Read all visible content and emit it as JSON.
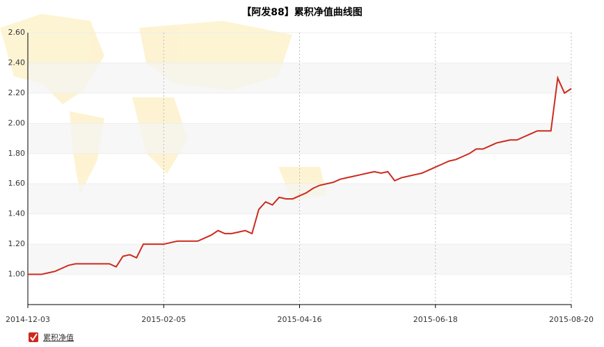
{
  "chart_data": {
    "type": "line",
    "title": "【阿发88】累积净值曲线图",
    "categories": [
      "2014-12-03",
      null,
      null,
      null,
      null,
      null,
      null,
      null,
      null,
      null,
      null,
      null,
      null,
      null,
      null,
      null,
      null,
      null,
      null,
      null,
      "2015-02-05",
      null,
      null,
      null,
      null,
      null,
      null,
      null,
      null,
      null,
      null,
      null,
      null,
      null,
      null,
      null,
      null,
      null,
      null,
      null,
      "2015-04-16",
      null,
      null,
      null,
      null,
      null,
      null,
      null,
      null,
      null,
      null,
      null,
      null,
      null,
      null,
      null,
      null,
      null,
      null,
      null,
      "2015-06-18",
      null,
      null,
      null,
      null,
      null,
      null,
      null,
      null,
      null,
      null,
      null,
      null,
      null,
      null,
      null,
      null,
      null,
      null,
      null,
      "2015-08-20"
    ],
    "series": [
      {
        "name": "累积净值",
        "color": "#cc2a1e",
        "values": [
          1.0,
          1.0,
          1.0,
          1.01,
          1.02,
          1.04,
          1.06,
          1.07,
          1.07,
          1.07,
          1.07,
          1.07,
          1.07,
          1.05,
          1.12,
          1.13,
          1.11,
          1.2,
          1.2,
          1.2,
          1.2,
          1.21,
          1.22,
          1.22,
          1.22,
          1.22,
          1.24,
          1.26,
          1.29,
          1.27,
          1.27,
          1.28,
          1.29,
          1.27,
          1.43,
          1.48,
          1.46,
          1.51,
          1.5,
          1.5,
          1.52,
          1.54,
          1.57,
          1.59,
          1.6,
          1.61,
          1.63,
          1.64,
          1.65,
          1.66,
          1.67,
          1.68,
          1.67,
          1.68,
          1.62,
          1.64,
          1.65,
          1.66,
          1.67,
          1.69,
          1.71,
          1.73,
          1.75,
          1.76,
          1.78,
          1.8,
          1.83,
          1.83,
          1.85,
          1.87,
          1.88,
          1.89,
          1.89,
          1.91,
          1.93,
          1.95,
          1.95,
          1.95,
          2.3,
          2.2,
          2.23
        ]
      }
    ],
    "ylim": [
      0.8,
      2.6
    ],
    "yticks": [
      {
        "value": 1.0,
        "label": "1.00"
      },
      {
        "value": 1.2,
        "label": "1.20"
      },
      {
        "value": 1.4,
        "label": "1.40"
      },
      {
        "value": 1.6,
        "label": "1.60"
      },
      {
        "value": 1.8,
        "label": "1.80"
      },
      {
        "value": 2.0,
        "label": "2.00"
      },
      {
        "value": 2.2,
        "label": "2.20"
      },
      {
        "value": 2.4,
        "label": "2.40"
      },
      {
        "value": 2.6,
        "label": "2.60"
      }
    ],
    "grid": true
  }
}
